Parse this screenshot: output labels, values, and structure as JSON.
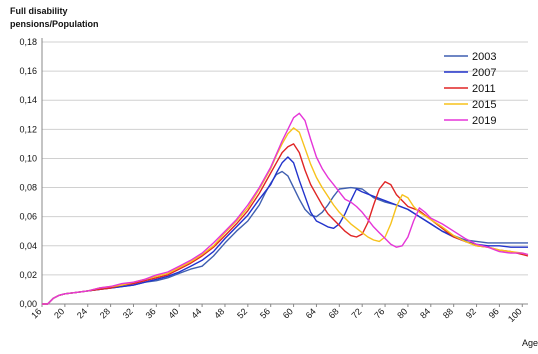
{
  "chart_data": {
    "type": "line",
    "title": "",
    "ylabel_lines": [
      "Full disability",
      "pensions/Population"
    ],
    "xlabel": "Age",
    "xlim": [
      16,
      101
    ],
    "ylim": [
      0,
      0.18
    ],
    "x_ticks": [
      16,
      20,
      24,
      28,
      32,
      36,
      40,
      44,
      48,
      52,
      56,
      60,
      64,
      68,
      72,
      76,
      80,
      84,
      88,
      92,
      96,
      100
    ],
    "y_ticks": [
      0,
      0.02,
      0.04,
      0.06,
      0.08,
      0.1,
      0.12,
      0.14,
      0.16,
      0.18
    ],
    "y_tick_labels": [
      "0,00",
      "0,02",
      "0,04",
      "0,06",
      "0,08",
      "0,10",
      "0,12",
      "0,14",
      "0,16",
      "0,18"
    ],
    "grid": "horizontal",
    "legend": "top-right",
    "series": [
      {
        "name": "2003",
        "color": "#3f5fb0",
        "points": [
          [
            16,
            0.0
          ],
          [
            17,
            0.0
          ],
          [
            18,
            0.004
          ],
          [
            19,
            0.006
          ],
          [
            20,
            0.007
          ],
          [
            22,
            0.008
          ],
          [
            24,
            0.009
          ],
          [
            26,
            0.01
          ],
          [
            28,
            0.011
          ],
          [
            30,
            0.012
          ],
          [
            32,
            0.013
          ],
          [
            34,
            0.015
          ],
          [
            36,
            0.016
          ],
          [
            38,
            0.018
          ],
          [
            40,
            0.021
          ],
          [
            42,
            0.024
          ],
          [
            44,
            0.026
          ],
          [
            46,
            0.033
          ],
          [
            48,
            0.042
          ],
          [
            50,
            0.05
          ],
          [
            52,
            0.057
          ],
          [
            54,
            0.068
          ],
          [
            55,
            0.076
          ],
          [
            56,
            0.083
          ],
          [
            57,
            0.089
          ],
          [
            58,
            0.091
          ],
          [
            59,
            0.088
          ],
          [
            60,
            0.08
          ],
          [
            61,
            0.072
          ],
          [
            62,
            0.065
          ],
          [
            63,
            0.061
          ],
          [
            64,
            0.06
          ],
          [
            65,
            0.063
          ],
          [
            66,
            0.068
          ],
          [
            67,
            0.074
          ],
          [
            68,
            0.079
          ],
          [
            70,
            0.08
          ],
          [
            72,
            0.079
          ],
          [
            74,
            0.073
          ],
          [
            76,
            0.07
          ],
          [
            78,
            0.068
          ],
          [
            80,
            0.065
          ],
          [
            82,
            0.06
          ],
          [
            84,
            0.055
          ],
          [
            86,
            0.05
          ],
          [
            88,
            0.047
          ],
          [
            90,
            0.044
          ],
          [
            92,
            0.043
          ],
          [
            94,
            0.042
          ],
          [
            96,
            0.042
          ],
          [
            98,
            0.042
          ],
          [
            100,
            0.042
          ],
          [
            101,
            0.042
          ]
        ]
      },
      {
        "name": "2007",
        "color": "#2233cc",
        "points": [
          [
            16,
            0.0
          ],
          [
            17,
            0.0
          ],
          [
            18,
            0.004
          ],
          [
            19,
            0.006
          ],
          [
            20,
            0.007
          ],
          [
            22,
            0.008
          ],
          [
            24,
            0.009
          ],
          [
            26,
            0.01
          ],
          [
            28,
            0.011
          ],
          [
            30,
            0.012
          ],
          [
            32,
            0.013
          ],
          [
            34,
            0.015
          ],
          [
            36,
            0.017
          ],
          [
            38,
            0.019
          ],
          [
            40,
            0.022
          ],
          [
            42,
            0.026
          ],
          [
            44,
            0.03
          ],
          [
            46,
            0.036
          ],
          [
            48,
            0.045
          ],
          [
            50,
            0.053
          ],
          [
            52,
            0.061
          ],
          [
            54,
            0.072
          ],
          [
            56,
            0.082
          ],
          [
            57,
            0.09
          ],
          [
            58,
            0.097
          ],
          [
            59,
            0.101
          ],
          [
            60,
            0.097
          ],
          [
            61,
            0.085
          ],
          [
            62,
            0.074
          ],
          [
            63,
            0.063
          ],
          [
            64,
            0.057
          ],
          [
            65,
            0.055
          ],
          [
            66,
            0.053
          ],
          [
            67,
            0.052
          ],
          [
            68,
            0.055
          ],
          [
            69,
            0.062
          ],
          [
            70,
            0.071
          ],
          [
            71,
            0.079
          ],
          [
            72,
            0.077
          ],
          [
            74,
            0.074
          ],
          [
            76,
            0.071
          ],
          [
            78,
            0.068
          ],
          [
            80,
            0.065
          ],
          [
            82,
            0.06
          ],
          [
            84,
            0.055
          ],
          [
            86,
            0.05
          ],
          [
            88,
            0.046
          ],
          [
            90,
            0.043
          ],
          [
            92,
            0.041
          ],
          [
            94,
            0.04
          ],
          [
            96,
            0.04
          ],
          [
            98,
            0.039
          ],
          [
            100,
            0.039
          ],
          [
            101,
            0.039
          ]
        ]
      },
      {
        "name": "2011",
        "color": "#e02525",
        "points": [
          [
            16,
            0.0
          ],
          [
            17,
            0.0
          ],
          [
            18,
            0.004
          ],
          [
            19,
            0.006
          ],
          [
            20,
            0.007
          ],
          [
            22,
            0.008
          ],
          [
            24,
            0.009
          ],
          [
            26,
            0.01
          ],
          [
            28,
            0.011
          ],
          [
            30,
            0.013
          ],
          [
            32,
            0.014
          ],
          [
            34,
            0.016
          ],
          [
            36,
            0.018
          ],
          [
            38,
            0.02
          ],
          [
            40,
            0.024
          ],
          [
            42,
            0.028
          ],
          [
            44,
            0.033
          ],
          [
            46,
            0.039
          ],
          [
            48,
            0.047
          ],
          [
            50,
            0.055
          ],
          [
            52,
            0.064
          ],
          [
            54,
            0.076
          ],
          [
            56,
            0.09
          ],
          [
            57,
            0.097
          ],
          [
            58,
            0.104
          ],
          [
            59,
            0.108
          ],
          [
            60,
            0.11
          ],
          [
            61,
            0.104
          ],
          [
            62,
            0.092
          ],
          [
            63,
            0.082
          ],
          [
            64,
            0.075
          ],
          [
            65,
            0.068
          ],
          [
            66,
            0.062
          ],
          [
            67,
            0.058
          ],
          [
            68,
            0.054
          ],
          [
            69,
            0.05
          ],
          [
            70,
            0.047
          ],
          [
            71,
            0.046
          ],
          [
            72,
            0.048
          ],
          [
            73,
            0.056
          ],
          [
            74,
            0.068
          ],
          [
            75,
            0.079
          ],
          [
            76,
            0.084
          ],
          [
            77,
            0.082
          ],
          [
            78,
            0.075
          ],
          [
            80,
            0.067
          ],
          [
            82,
            0.064
          ],
          [
            84,
            0.058
          ],
          [
            86,
            0.052
          ],
          [
            88,
            0.046
          ],
          [
            90,
            0.043
          ],
          [
            92,
            0.04
          ],
          [
            94,
            0.039
          ],
          [
            96,
            0.037
          ],
          [
            98,
            0.036
          ],
          [
            100,
            0.034
          ],
          [
            101,
            0.033
          ]
        ]
      },
      {
        "name": "2015",
        "color": "#f7c21c",
        "points": [
          [
            16,
            0.0
          ],
          [
            17,
            0.0
          ],
          [
            18,
            0.004
          ],
          [
            19,
            0.006
          ],
          [
            20,
            0.007
          ],
          [
            22,
            0.008
          ],
          [
            24,
            0.009
          ],
          [
            26,
            0.011
          ],
          [
            28,
            0.012
          ],
          [
            30,
            0.013
          ],
          [
            32,
            0.015
          ],
          [
            34,
            0.017
          ],
          [
            36,
            0.019
          ],
          [
            38,
            0.021
          ],
          [
            40,
            0.025
          ],
          [
            42,
            0.029
          ],
          [
            44,
            0.034
          ],
          [
            46,
            0.04
          ],
          [
            48,
            0.049
          ],
          [
            50,
            0.057
          ],
          [
            52,
            0.066
          ],
          [
            54,
            0.079
          ],
          [
            56,
            0.093
          ],
          [
            57,
            0.102
          ],
          [
            58,
            0.11
          ],
          [
            59,
            0.117
          ],
          [
            60,
            0.121
          ],
          [
            61,
            0.118
          ],
          [
            62,
            0.107
          ],
          [
            63,
            0.096
          ],
          [
            64,
            0.087
          ],
          [
            65,
            0.08
          ],
          [
            66,
            0.074
          ],
          [
            67,
            0.068
          ],
          [
            68,
            0.063
          ],
          [
            69,
            0.059
          ],
          [
            70,
            0.055
          ],
          [
            71,
            0.052
          ],
          [
            72,
            0.049
          ],
          [
            73,
            0.046
          ],
          [
            74,
            0.044
          ],
          [
            75,
            0.043
          ],
          [
            76,
            0.046
          ],
          [
            77,
            0.055
          ],
          [
            78,
            0.067
          ],
          [
            79,
            0.075
          ],
          [
            80,
            0.073
          ],
          [
            81,
            0.067
          ],
          [
            82,
            0.063
          ],
          [
            84,
            0.058
          ],
          [
            86,
            0.053
          ],
          [
            88,
            0.047
          ],
          [
            90,
            0.043
          ],
          [
            92,
            0.04
          ],
          [
            94,
            0.039
          ],
          [
            96,
            0.037
          ],
          [
            98,
            0.036
          ],
          [
            100,
            0.035
          ],
          [
            101,
            0.034
          ]
        ]
      },
      {
        "name": "2019",
        "color": "#e535d8",
        "points": [
          [
            16,
            0.0
          ],
          [
            17,
            0.0
          ],
          [
            18,
            0.004
          ],
          [
            19,
            0.006
          ],
          [
            20,
            0.007
          ],
          [
            22,
            0.008
          ],
          [
            24,
            0.009
          ],
          [
            26,
            0.011
          ],
          [
            28,
            0.012
          ],
          [
            30,
            0.014
          ],
          [
            32,
            0.015
          ],
          [
            34,
            0.017
          ],
          [
            36,
            0.02
          ],
          [
            38,
            0.022
          ],
          [
            40,
            0.026
          ],
          [
            42,
            0.03
          ],
          [
            44,
            0.035
          ],
          [
            46,
            0.042
          ],
          [
            48,
            0.05
          ],
          [
            50,
            0.058
          ],
          [
            52,
            0.068
          ],
          [
            54,
            0.08
          ],
          [
            56,
            0.094
          ],
          [
            57,
            0.103
          ],
          [
            58,
            0.112
          ],
          [
            59,
            0.12
          ],
          [
            60,
            0.128
          ],
          [
            61,
            0.131
          ],
          [
            62,
            0.126
          ],
          [
            63,
            0.113
          ],
          [
            64,
            0.101
          ],
          [
            65,
            0.093
          ],
          [
            66,
            0.087
          ],
          [
            67,
            0.082
          ],
          [
            68,
            0.077
          ],
          [
            69,
            0.072
          ],
          [
            70,
            0.07
          ],
          [
            71,
            0.067
          ],
          [
            72,
            0.063
          ],
          [
            73,
            0.058
          ],
          [
            74,
            0.053
          ],
          [
            75,
            0.049
          ],
          [
            76,
            0.045
          ],
          [
            77,
            0.041
          ],
          [
            78,
            0.039
          ],
          [
            79,
            0.04
          ],
          [
            80,
            0.046
          ],
          [
            81,
            0.057
          ],
          [
            82,
            0.066
          ],
          [
            83,
            0.063
          ],
          [
            84,
            0.059
          ],
          [
            86,
            0.055
          ],
          [
            88,
            0.05
          ],
          [
            90,
            0.045
          ],
          [
            92,
            0.041
          ],
          [
            94,
            0.039
          ],
          [
            96,
            0.036
          ],
          [
            98,
            0.035
          ],
          [
            100,
            0.035
          ],
          [
            101,
            0.034
          ]
        ]
      }
    ]
  }
}
